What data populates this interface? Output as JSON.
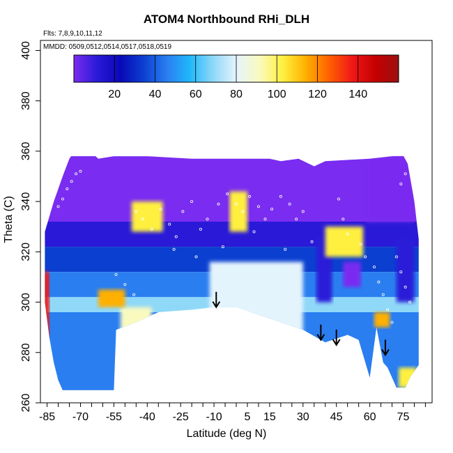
{
  "chart_data": {
    "type": "heatmap",
    "title": "ATOM4 Northbound RHi_DLH",
    "notes": {
      "flights": "Flts: 7,8,9,10,11,12",
      "dates": "MMDD: 0509,0512,0514,0517,0518,0519"
    },
    "xlabel": "Latitude (deg N)",
    "ylabel": "Theta (C)",
    "xlim": [
      -88,
      88
    ],
    "ylim": [
      260,
      404
    ],
    "x_ticks": [
      -85,
      -70,
      -55,
      -40,
      -25,
      -10,
      5,
      15,
      30,
      45,
      60,
      75
    ],
    "y_ticks": [
      260,
      280,
      300,
      320,
      340,
      360,
      380,
      400
    ],
    "colorbar": {
      "min": 0,
      "max": 160,
      "ticks": [
        20,
        40,
        60,
        80,
        100,
        120,
        140
      ],
      "colors": [
        "#7a2cf0",
        "#2a1ad8",
        "#0a08b8",
        "#0b3fd0",
        "#2a7ef0",
        "#20b8fa",
        "#8fd8f8",
        "#e4f4fc",
        "#fafac0",
        "#fff040",
        "#ffb000",
        "#ff6000",
        "#f01818",
        "#c40000",
        "#9c1010"
      ]
    },
    "arrows": [
      {
        "lat": -9,
        "theta": 298
      },
      {
        "lat": 38,
        "theta": 285
      },
      {
        "lat": 45,
        "theta": 283
      },
      {
        "lat": 67,
        "theta": 279
      }
    ],
    "envelope": {
      "top": [
        [
          -86,
          328
        ],
        [
          -82,
          340
        ],
        [
          -78,
          350
        ],
        [
          -75,
          357
        ],
        [
          -71,
          362
        ],
        [
          -68,
          362
        ],
        [
          -62,
          357
        ],
        [
          -55,
          358
        ],
        [
          -40,
          358
        ],
        [
          -20,
          357
        ],
        [
          0,
          357
        ],
        [
          15,
          357
        ],
        [
          20,
          356
        ],
        [
          28,
          357
        ],
        [
          35,
          354
        ],
        [
          40,
          356
        ],
        [
          60,
          357
        ],
        [
          70,
          358
        ],
        [
          74,
          360
        ],
        [
          77,
          355
        ],
        [
          80,
          340
        ],
        [
          82,
          325
        ]
      ],
      "bottom": [
        [
          -86,
          300
        ],
        [
          -84,
          286
        ],
        [
          -82,
          276
        ],
        [
          -80,
          269
        ],
        [
          -78,
          265
        ],
        [
          -55,
          265
        ],
        [
          -54,
          289
        ],
        [
          -45,
          292
        ],
        [
          -35,
          296
        ],
        [
          -20,
          297
        ],
        [
          -10,
          298
        ],
        [
          0,
          298
        ],
        [
          10,
          295
        ],
        [
          20,
          292
        ],
        [
          30,
          289
        ],
        [
          40,
          284
        ],
        [
          50,
          287
        ],
        [
          55,
          285
        ],
        [
          60,
          270
        ],
        [
          63,
          290
        ],
        [
          66,
          276
        ],
        [
          68,
          274
        ],
        [
          72,
          266
        ],
        [
          76,
          266
        ],
        [
          78,
          270
        ],
        [
          82,
          275
        ]
      ]
    },
    "bands": [
      {
        "theta": [
          332,
          358
        ],
        "rhi": 8
      },
      {
        "theta": [
          322,
          332
        ],
        "rhi": 18
      },
      {
        "theta": [
          312,
          322
        ],
        "rhi": 32
      },
      {
        "theta": [
          302,
          312
        ],
        "rhi": 52
      },
      {
        "theta": [
          296,
          302
        ],
        "rhi": 72
      },
      {
        "theta": [
          265,
          296
        ],
        "rhi": 48
      }
    ],
    "features": [
      {
        "lat": [
          -12,
          30
        ],
        "theta": [
          288,
          316
        ],
        "rhi": 80
      },
      {
        "lat": [
          -52,
          -38
        ],
        "theta": [
          270,
          298
        ],
        "rhi": 92
      },
      {
        "lat": [
          -87,
          -84
        ],
        "theta": [
          286,
          312
        ],
        "rhi": 130
      },
      {
        "lat": [
          -62,
          -50
        ],
        "theta": [
          298,
          305
        ],
        "rhi": 110
      },
      {
        "lat": [
          -47,
          -33
        ],
        "theta": [
          328,
          340
        ],
        "rhi": 104
      },
      {
        "lat": [
          -3,
          5
        ],
        "theta": [
          328,
          344
        ],
        "rhi": 100
      },
      {
        "lat": [
          36,
          43
        ],
        "theta": [
          300,
          326
        ],
        "rhi": 12
      },
      {
        "lat": [
          40,
          57
        ],
        "theta": [
          318,
          330
        ],
        "rhi": 98
      },
      {
        "lat": [
          48,
          56
        ],
        "theta": [
          306,
          316
        ],
        "rhi": 10
      },
      {
        "lat": [
          72,
          80
        ],
        "theta": [
          300,
          325
        ],
        "rhi": 12
      },
      {
        "lat": [
          73,
          81
        ],
        "theta": [
          266,
          274
        ],
        "rhi": 96
      },
      {
        "lat": [
          62,
          69
        ],
        "theta": [
          290,
          296
        ],
        "rhi": 112
      },
      {
        "lat": [
          58,
          80
        ],
        "theta": [
          332,
          357
        ],
        "rhi": 6
      }
    ],
    "obs_points": [
      [
        -80,
        338
      ],
      [
        -78,
        341
      ],
      [
        -76,
        345
      ],
      [
        -74,
        348
      ],
      [
        -72,
        351
      ],
      [
        -70,
        352
      ],
      [
        -45,
        336
      ],
      [
        -42,
        333
      ],
      [
        -38,
        329
      ],
      [
        -34,
        337
      ],
      [
        -30,
        331
      ],
      [
        -27,
        326
      ],
      [
        -24,
        336
      ],
      [
        -20,
        340
      ],
      [
        -16,
        329
      ],
      [
        -13,
        333
      ],
      [
        -8,
        339
      ],
      [
        -4,
        343
      ],
      [
        0,
        339
      ],
      [
        3,
        336
      ],
      [
        6,
        342
      ],
      [
        10,
        338
      ],
      [
        13,
        333
      ],
      [
        16,
        337
      ],
      [
        20,
        342
      ],
      [
        24,
        339
      ],
      [
        27,
        333
      ],
      [
        30,
        336
      ],
      [
        46,
        341
      ],
      [
        48,
        333
      ],
      [
        50,
        327
      ],
      [
        56,
        323
      ],
      [
        58,
        318
      ],
      [
        62,
        314
      ],
      [
        64,
        308
      ],
      [
        66,
        303
      ],
      [
        68,
        297
      ],
      [
        70,
        292
      ],
      [
        72,
        318
      ],
      [
        74,
        312
      ],
      [
        76,
        306
      ],
      [
        78,
        300
      ],
      [
        74,
        347
      ],
      [
        76,
        351
      ],
      [
        78,
        354
      ],
      [
        -54,
        311
      ],
      [
        -50,
        307
      ],
      [
        -46,
        303
      ],
      [
        -28,
        321
      ],
      [
        -18,
        318
      ],
      [
        -6,
        322
      ],
      [
        8,
        328
      ],
      [
        22,
        321
      ],
      [
        34,
        324
      ]
    ]
  }
}
